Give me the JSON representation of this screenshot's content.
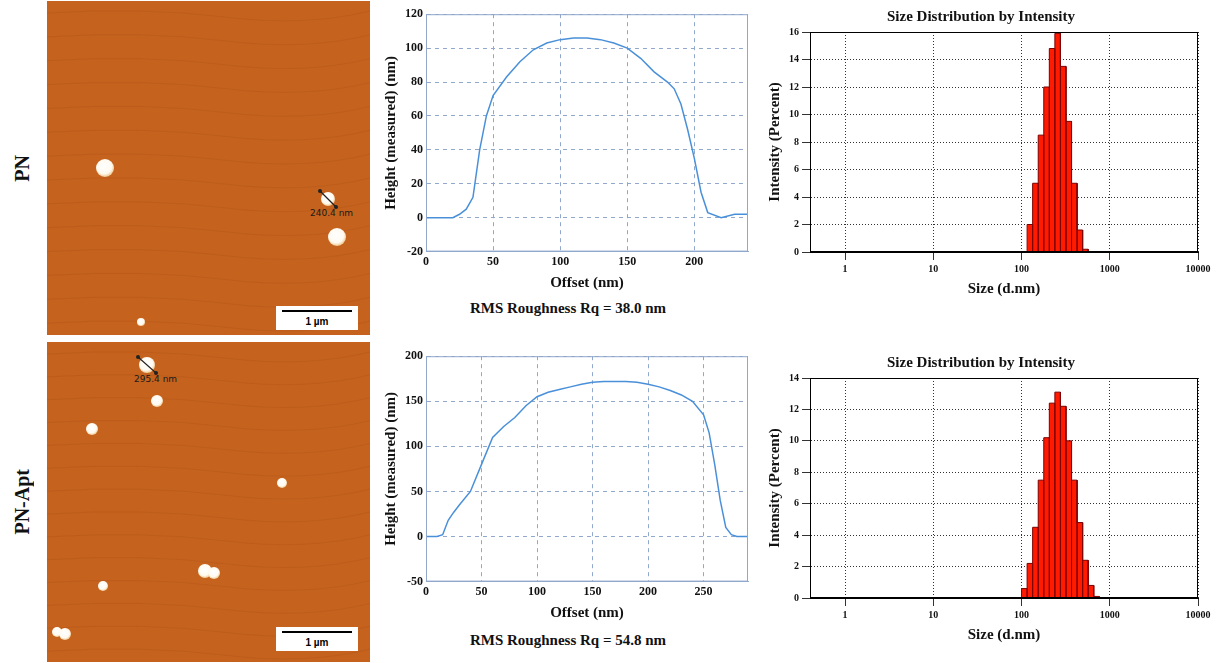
{
  "row_labels": [
    "PN",
    "PN-Apt"
  ],
  "afm_images": [
    {
      "measurement_label": "240.4 nm",
      "scale_bar_label": "1 µm"
    },
    {
      "measurement_label": "295.4 nm",
      "scale_bar_label": "1 µm"
    }
  ],
  "chart_data": [
    {
      "type": "line",
      "x": [
        0,
        10,
        20,
        25,
        30,
        35,
        40,
        45,
        50,
        60,
        70,
        80,
        90,
        100,
        110,
        120,
        130,
        140,
        150,
        160,
        170,
        180,
        185,
        190,
        195,
        200,
        205,
        210,
        220,
        230,
        240
      ],
      "values": [
        0,
        0,
        0,
        2,
        5,
        12,
        40,
        60,
        72,
        83,
        92,
        99,
        103,
        105,
        106,
        106,
        105,
        103,
        100,
        94,
        86,
        80,
        76,
        67,
        52,
        35,
        15,
        3,
        0,
        2,
        2
      ],
      "color": "#4a90d9",
      "xlabel": "Offset (nm)",
      "ylabel": "Height (measured) (nm)",
      "xlim": [
        0,
        240
      ],
      "xticks": [
        0,
        50,
        100,
        150,
        200
      ],
      "ylim": [
        -20,
        120
      ],
      "yticks": [
        -20,
        0,
        20,
        40,
        60,
        80,
        100,
        120
      ],
      "grid": true,
      "annotation": "RMS Roughness Rq = 38.0 nm"
    },
    {
      "type": "histogram",
      "title": "Size Distribution by Intensity",
      "bins": [
        115.6,
        133.6,
        154.5,
        178.6,
        206.4,
        238.6,
        275.8,
        318.9,
        368.6,
        426.1,
        492.6,
        569.4
      ],
      "values": [
        2.0,
        5.0,
        8.5,
        12.0,
        14.8,
        15.9,
        13.5,
        9.5,
        5.0,
        1.6,
        0.2
      ],
      "color": "#ff1a00",
      "xlabel": "Size (d.nm)",
      "ylabel": "Intensity (Percent)",
      "log": "x",
      "xlim": [
        0.4,
        10000
      ],
      "xticks": [
        1,
        10,
        100,
        1000,
        10000
      ],
      "ylim": [
        0,
        16
      ],
      "yticks": [
        0,
        2,
        4,
        6,
        8,
        10,
        12,
        14,
        16
      ],
      "grid": true
    },
    {
      "type": "line",
      "x": [
        0,
        10,
        15,
        20,
        25,
        30,
        40,
        50,
        60,
        70,
        80,
        90,
        100,
        110,
        120,
        130,
        140,
        150,
        160,
        170,
        180,
        190,
        200,
        210,
        220,
        230,
        240,
        250,
        255,
        260,
        265,
        270,
        275,
        280,
        290
      ],
      "values": [
        0,
        0,
        2,
        18,
        27,
        35,
        50,
        80,
        110,
        122,
        132,
        145,
        155,
        160,
        163,
        166,
        169,
        171,
        172,
        172,
        172,
        171,
        169,
        166,
        162,
        157,
        150,
        135,
        115,
        80,
        40,
        10,
        2,
        0,
        0
      ],
      "color": "#4a90d9",
      "xlabel": "Offset (nm)",
      "ylabel": "Height (measured) (nm)",
      "xlim": [
        0,
        290
      ],
      "xticks": [
        0,
        50,
        100,
        150,
        200,
        250
      ],
      "ylim": [
        -50,
        200
      ],
      "yticks": [
        -50,
        0,
        50,
        100,
        150,
        200
      ],
      "grid": true,
      "annotation": "RMS Roughness Rq = 54.8 nm"
    },
    {
      "type": "histogram",
      "title": "Size Distribution by Intensity",
      "bins": [
        100,
        115.6,
        133.6,
        154.5,
        178.6,
        206.4,
        238.6,
        275.8,
        318.9,
        368.6,
        426.1,
        492.6,
        569.4,
        658.3,
        761.0
      ],
      "values": [
        0.6,
        2.2,
        4.5,
        7.5,
        10.2,
        12.4,
        13.1,
        12.2,
        10.0,
        7.5,
        4.8,
        2.4,
        0.8,
        0.1
      ],
      "color": "#ff1a00",
      "xlabel": "Size (d.nm)",
      "ylabel": "Intensity (Percent)",
      "log": "x",
      "xlim": [
        0.4,
        10000
      ],
      "xticks": [
        1,
        10,
        100,
        1000,
        10000
      ],
      "ylim": [
        0,
        14
      ],
      "yticks": [
        0,
        2,
        4,
        6,
        8,
        10,
        12,
        14
      ],
      "grid": true
    }
  ]
}
